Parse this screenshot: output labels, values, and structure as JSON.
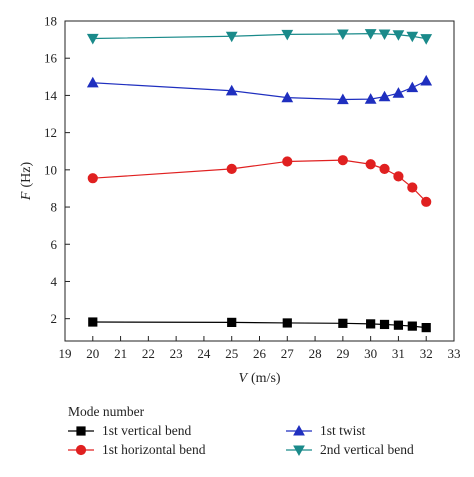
{
  "chart_data": {
    "type": "line",
    "xlabel": {
      "var": "V",
      "unit": "(m/s)"
    },
    "ylabel": {
      "var": "F",
      "unit": "(Hz)"
    },
    "xlim": [
      19,
      33
    ],
    "ylim": [
      0.8,
      18
    ],
    "xticks": [
      19,
      20,
      21,
      22,
      23,
      24,
      25,
      26,
      27,
      28,
      29,
      30,
      31,
      32,
      33
    ],
    "yticks": [
      2,
      4,
      6,
      8,
      10,
      12,
      14,
      16,
      18
    ],
    "grid": false,
    "legend_title": "Mode number",
    "series": [
      {
        "name": "1st vertical bend",
        "color": "#000000",
        "marker": "square",
        "x": [
          20,
          25,
          27,
          29,
          30,
          30.5,
          31,
          31.5,
          32
        ],
        "y": [
          1.82,
          1.8,
          1.77,
          1.75,
          1.72,
          1.69,
          1.65,
          1.6,
          1.52
        ]
      },
      {
        "name": "1st horizontal bend",
        "color": "#e02020",
        "marker": "circle",
        "x": [
          20,
          25,
          27,
          29,
          30,
          30.5,
          31,
          31.5,
          32
        ],
        "y": [
          9.55,
          10.05,
          10.45,
          10.52,
          10.3,
          10.05,
          9.65,
          9.05,
          8.28
        ]
      },
      {
        "name": "1st twist",
        "color": "#1f2fbf",
        "marker": "triangle-up",
        "x": [
          20,
          25,
          27,
          29,
          30,
          30.5,
          31,
          31.5,
          32
        ],
        "y": [
          14.68,
          14.25,
          13.88,
          13.78,
          13.8,
          13.93,
          14.12,
          14.42,
          14.78
        ]
      },
      {
        "name": "2nd vertical bend",
        "color": "#1a8a8a",
        "marker": "triangle-down",
        "x": [
          20,
          25,
          27,
          29,
          30,
          30.5,
          31,
          31.5,
          32
        ],
        "y": [
          17.06,
          17.18,
          17.28,
          17.3,
          17.32,
          17.3,
          17.26,
          17.18,
          17.05
        ]
      }
    ]
  }
}
